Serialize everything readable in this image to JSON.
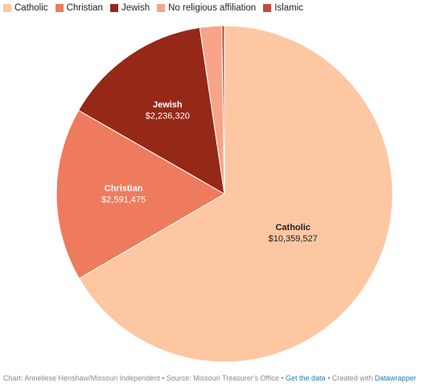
{
  "chart_data": {
    "type": "pie",
    "title": "",
    "legend_position": "top-left",
    "slices": [
      {
        "name": "Catholic",
        "value": 10359527,
        "value_label": "$10,359,527",
        "color": "#fdc7a2",
        "label_color": "#222222"
      },
      {
        "name": "Christian",
        "value": 2591475,
        "value_label": "$2,591,475",
        "color": "#ee7b5d",
        "label_color": "#ffffff"
      },
      {
        "name": "Jewish",
        "value": 2236320,
        "value_label": "$2,236,320",
        "color": "#962817",
        "label_color": "#ffffff"
      },
      {
        "name": "No religious affiliation",
        "value": 325000,
        "value_label": "",
        "color": "#f7a488",
        "label_color": "#222222"
      },
      {
        "name": "Islamic",
        "value": 40000,
        "value_label": "",
        "color": "#bf4f3a",
        "label_color": "#222222"
      }
    ]
  },
  "footer": {
    "credit": "Chart: Anneliese Henshaw/Missouri Independent • Source: Missouri Treasurer's Office • ",
    "get_data": "Get the data",
    "sep": " • Created with ",
    "tool": "Datawrapper"
  }
}
